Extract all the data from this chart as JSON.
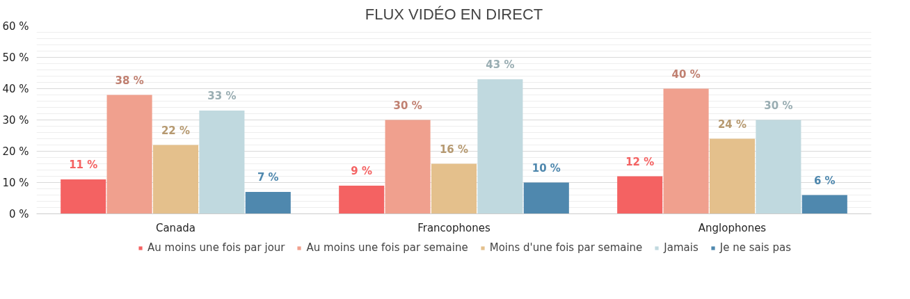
{
  "chart_data": {
    "type": "bar",
    "title": "FLUX VIDÉO EN DIRECT",
    "categories": [
      "Canada",
      "Francophones",
      "Anglophones"
    ],
    "series": [
      {
        "name": "Au moins une fois par jour",
        "color": "#f46262",
        "values": [
          11,
          9,
          12
        ],
        "value_labels": [
          "11 %",
          "9 %",
          "12 %"
        ]
      },
      {
        "name": "Au moins une fois par semaine",
        "color": "#f0a08e",
        "values": [
          38,
          30,
          40
        ],
        "value_labels": [
          "38 %",
          "30 %",
          "40 %"
        ]
      },
      {
        "name": "Moins d'une fois par semaine",
        "color": "#e4c08c",
        "values": [
          22,
          16,
          24
        ],
        "value_labels": [
          "22 %",
          "16 %",
          "24 %"
        ]
      },
      {
        "name": "Jamais",
        "color": "#c0d9df",
        "values": [
          33,
          43,
          30
        ],
        "value_labels": [
          "33 %",
          "43 %",
          "30 %"
        ]
      },
      {
        "name": "Je ne sais pas",
        "color": "#4f88ae",
        "values": [
          7,
          10,
          6
        ],
        "value_labels": [
          "7 %",
          "10 %",
          "6 %"
        ]
      }
    ],
    "ylim": [
      0,
      60
    ],
    "yticks": [
      {
        "value": 0,
        "label": "0 %"
      },
      {
        "value": 10,
        "label": "10 %"
      },
      {
        "value": 20,
        "label": "20 %"
      },
      {
        "value": 30,
        "label": "30 %"
      },
      {
        "value": 40,
        "label": "40 %"
      },
      {
        "value": 50,
        "label": "50 %"
      },
      {
        "value": 60,
        "label": "60 %"
      }
    ],
    "grid": "y",
    "legend": "bottom"
  }
}
